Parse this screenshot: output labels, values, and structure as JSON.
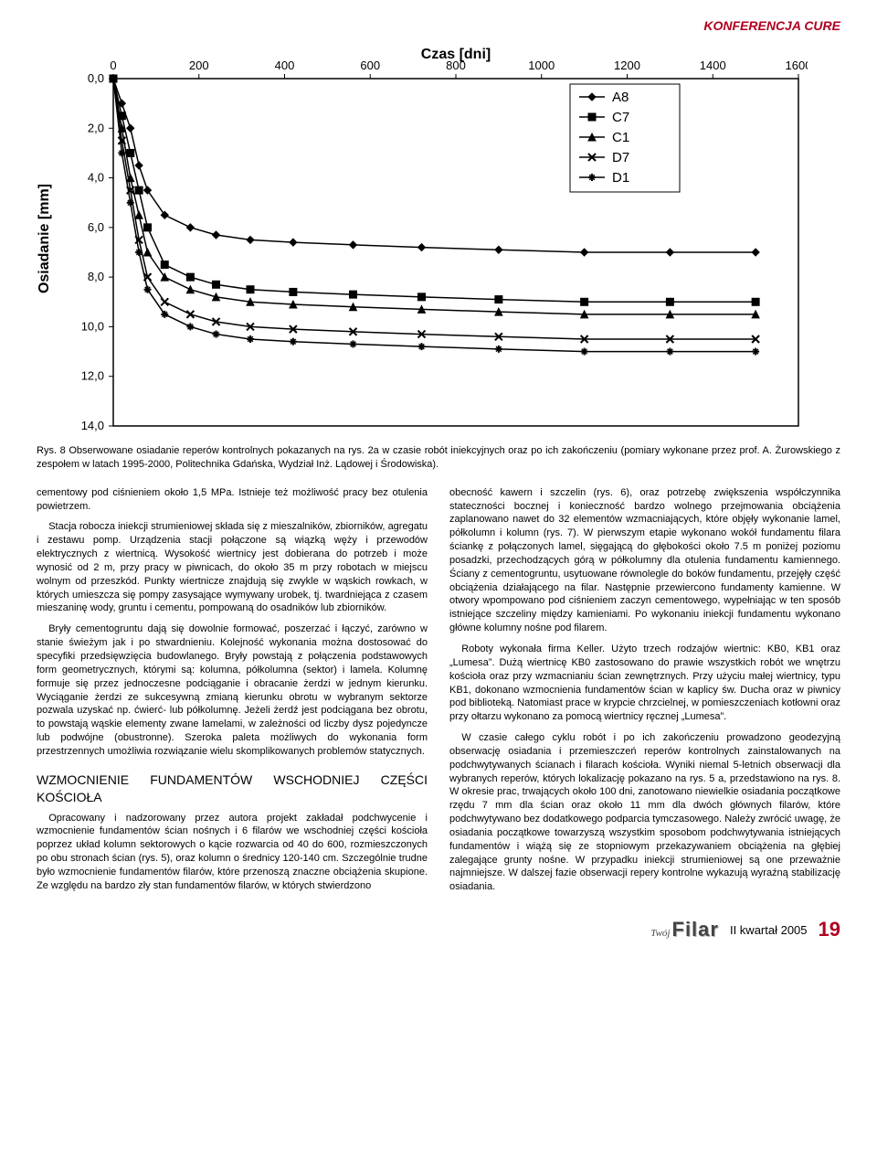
{
  "header": {
    "conference": "KONFERENCJA CURE"
  },
  "chart": {
    "type": "line",
    "title": "Czas [dni]",
    "title_fontsize": 16,
    "ylabel": "Osiadanie [mm]",
    "ylabel_fontsize": 16,
    "xlim": [
      0,
      1600
    ],
    "ylim": [
      14.0,
      0.0
    ],
    "xticks": [
      0,
      200,
      400,
      600,
      800,
      1000,
      1200,
      1400,
      1600
    ],
    "yticks": [
      0.0,
      2.0,
      4.0,
      6.0,
      8.0,
      10.0,
      12.0,
      14.0
    ],
    "background_color": "#ffffff",
    "border_color": "#000000",
    "series": [
      {
        "name": "A8",
        "marker": "diamond",
        "color": "#000000",
        "x": [
          0,
          20,
          40,
          60,
          80,
          120,
          180,
          240,
          320,
          420,
          560,
          720,
          900,
          1100,
          1300,
          1500
        ],
        "y": [
          0.0,
          1.0,
          2.0,
          3.5,
          4.5,
          5.5,
          6.0,
          6.3,
          6.5,
          6.6,
          6.7,
          6.8,
          6.9,
          7.0,
          7.0,
          7.0
        ]
      },
      {
        "name": "C7",
        "marker": "square",
        "color": "#000000",
        "x": [
          0,
          20,
          40,
          60,
          80,
          120,
          180,
          240,
          320,
          420,
          560,
          720,
          900,
          1100,
          1300,
          1500
        ],
        "y": [
          0.0,
          1.5,
          3.0,
          4.5,
          6.0,
          7.5,
          8.0,
          8.3,
          8.5,
          8.6,
          8.7,
          8.8,
          8.9,
          9.0,
          9.0,
          9.0
        ]
      },
      {
        "name": "C1",
        "marker": "triangle",
        "color": "#000000",
        "x": [
          0,
          20,
          40,
          60,
          80,
          120,
          180,
          240,
          320,
          420,
          560,
          720,
          900,
          1100,
          1300,
          1500
        ],
        "y": [
          0.0,
          2.0,
          4.0,
          5.5,
          7.0,
          8.0,
          8.5,
          8.8,
          9.0,
          9.1,
          9.2,
          9.3,
          9.4,
          9.5,
          9.5,
          9.5
        ]
      },
      {
        "name": "D7",
        "marker": "x",
        "color": "#000000",
        "x": [
          0,
          20,
          40,
          60,
          80,
          120,
          180,
          240,
          320,
          420,
          560,
          720,
          900,
          1100,
          1300,
          1500
        ],
        "y": [
          0.0,
          2.5,
          4.5,
          6.5,
          8.0,
          9.0,
          9.5,
          9.8,
          10.0,
          10.1,
          10.2,
          10.3,
          10.4,
          10.5,
          10.5,
          10.5
        ]
      },
      {
        "name": "D1",
        "marker": "star",
        "color": "#000000",
        "x": [
          0,
          20,
          40,
          60,
          80,
          120,
          180,
          240,
          320,
          420,
          560,
          720,
          900,
          1100,
          1300,
          1500
        ],
        "y": [
          0.0,
          3.0,
          5.0,
          7.0,
          8.5,
          9.5,
          10.0,
          10.3,
          10.5,
          10.6,
          10.7,
          10.8,
          10.9,
          11.0,
          11.0,
          11.0
        ]
      }
    ],
    "legend_position": "right-inside",
    "marker_size": 8,
    "line_width": 1.5
  },
  "caption": "Rys. 8 Obserwowane osiadanie reperów kontrolnych pokazanych na rys. 2a w czasie robót iniekcyjnych oraz po ich zakończeniu (pomiary wykonane przez prof. A. Żurowskiego z zespołem w latach 1995-2000, Politechnika Gdańska, Wydział Inż. Lądowej i Środowiska).",
  "left_col": {
    "p1": "cementowy pod ciśnieniem około 1,5 MPa. Istnieje też możliwość pracy bez otulenia powietrzem.",
    "p2": "Stacja robocza iniekcji strumieniowej składa się z mieszalników, zbiorników, agregatu i zestawu pomp. Urządzenia stacji połączone są wiązką węży i przewodów elektrycznych z wiertnicą. Wysokość wiertnicy jest dobierana do potrzeb i może wynosić od 2 m, przy pracy w piwnicach, do około 35 m przy robotach w miejscu wolnym od przeszkód. Punkty wiertnicze znajdują się zwykle w wąskich rowkach, w których umieszcza się pompy zasysające wymywany urobek, tj. twardniejąca z czasem mieszaninę wody, gruntu i cementu, pompowaną do osadników lub zbiorników.",
    "p3": "Bryły cementogruntu dają się dowolnie formować, poszerzać i łączyć, zarówno w stanie świeżym jak i po stwardnieniu. Kolejność wykonania można dostosować do specyfiki przedsięwzięcia budowlanego. Bryły powstają z połączenia podstawowych form geometrycznych, którymi są: kolumna, półkolumna (sektor) i lamela. Kolumnę formuje się przez jednoczesne podciąganie i obracanie żerdzi w jednym kierunku. Wyciąganie żerdzi ze sukcesywną zmianą kierunku obrotu w wybranym sektorze pozwala uzyskać np. ćwierć- lub półkolumnę. Jeżeli żerdź jest podciągana bez obrotu, to powstają wąskie elementy zwane lamelami, w zależności od liczby dysz pojedyncze lub podwójne (obustronne). Szeroka paleta możliwych do wykonania form przestrzennych umożliwia rozwiązanie wielu skomplikowanych problemów statycznych.",
    "section_title": "WZMOCNIENIE FUNDAMENTÓW WSCHODNIEJ CZĘŚCI KOŚCIOŁA",
    "p4": "Opracowany i nadzorowany przez autora projekt zakładał podchwycenie i wzmocnienie fundamentów ścian nośnych i 6 filarów we wschodniej części kościoła poprzez układ kolumn sektorowych o kącie rozwarcia od 40 do 600, rozmieszczonych po obu stronach ścian (rys. 5), oraz kolumn o średnicy 120-140 cm. Szczególnie trudne było wzmocnienie fundamentów filarów, które przenoszą znaczne obciążenia skupione. Ze względu na bardzo zły stan fundamentów filarów, w których stwierdzono"
  },
  "right_col": {
    "p1": "obecność kawern i szczelin (rys. 6), oraz potrzebę zwiększenia współczynnika stateczności bocznej i konieczność bardzo wolnego przejmowania obciążenia zaplanowano nawet do 32 elementów wzmacniających, które objęły wykonanie lamel, półkolumn i kolumn (rys. 7). W pierwszym etapie wykonano wokół fundamentu filara ściankę z połączonych lamel, sięgającą do głębokości około 7.5 m poniżej poziomu posadzki, przechodzących górą w półkolumny dla otulenia fundamentu kamiennego. Ściany z cementogruntu, usytuowane równolegle do boków fundamentu, przejęły część obciążenia działającego na filar. Następnie przewiercono fundamenty kamienne. W otwory wpompowano pod ciśnieniem zaczyn cementowego, wypełniając w ten sposób istniejące szczeliny między kamieniami. Po wykonaniu iniekcji fundamentu wykonano główne kolumny nośne pod filarem.",
    "p2": "Roboty wykonała firma Keller. Użyto trzech rodzajów wiertnic: KB0, KB1 oraz „Lumesa”. Dużą wiertnicę KB0 zastosowano do prawie wszystkich robót we wnętrzu kościoła oraz przy wzmacnianiu ścian zewnętrznych. Przy użyciu małej wiertnicy, typu KB1, dokonano wzmocnienia fundamentów ścian w kaplicy św. Ducha oraz w piwnicy pod biblioteką. Natomiast prace w krypcie chrzcielnej, w pomieszczeniach kotłowni oraz przy ołtarzu wykonano za pomocą wiertnicy ręcznej „Lumesa”.",
    "p3": "W czasie całego cyklu robót i po ich zakończeniu prowadzono geodezyjną obserwację osiadania i przemieszczeń reperów kontrolnych zainstalowanych na podchwytywanych ścianach i filarach kościoła. Wyniki niemal 5-letnich obserwacji dla wybranych reperów, których lokalizację pokazano na rys. 5 a, przedstawiono na rys. 8. W okresie prac, trwających około 100 dni, zanotowano niewielkie osiadania początkowe rzędu 7 mm dla ścian oraz około 11 mm dla dwóch głównych filarów, które podchwytywano bez dodatkowego podparcia tymczasowego. Należy zwrócić uwagę, że osiadania początkowe towarzyszą wszystkim sposobom podchwytywania istniejących fundamentów i wiążą się ze stopniowym przekazywaniem obciążenia na głębiej zalegające grunty nośne. W przypadku iniekcji strumieniowej są one przeważnie najmniejsze. W dalszej fazie obserwacji repery kontrolne wykazują wyraźną stabilizację osiadania."
  },
  "footer": {
    "logo_top": "Twój",
    "logo_main": "Filar",
    "issue": "II kwartał 2005",
    "page": "19"
  }
}
